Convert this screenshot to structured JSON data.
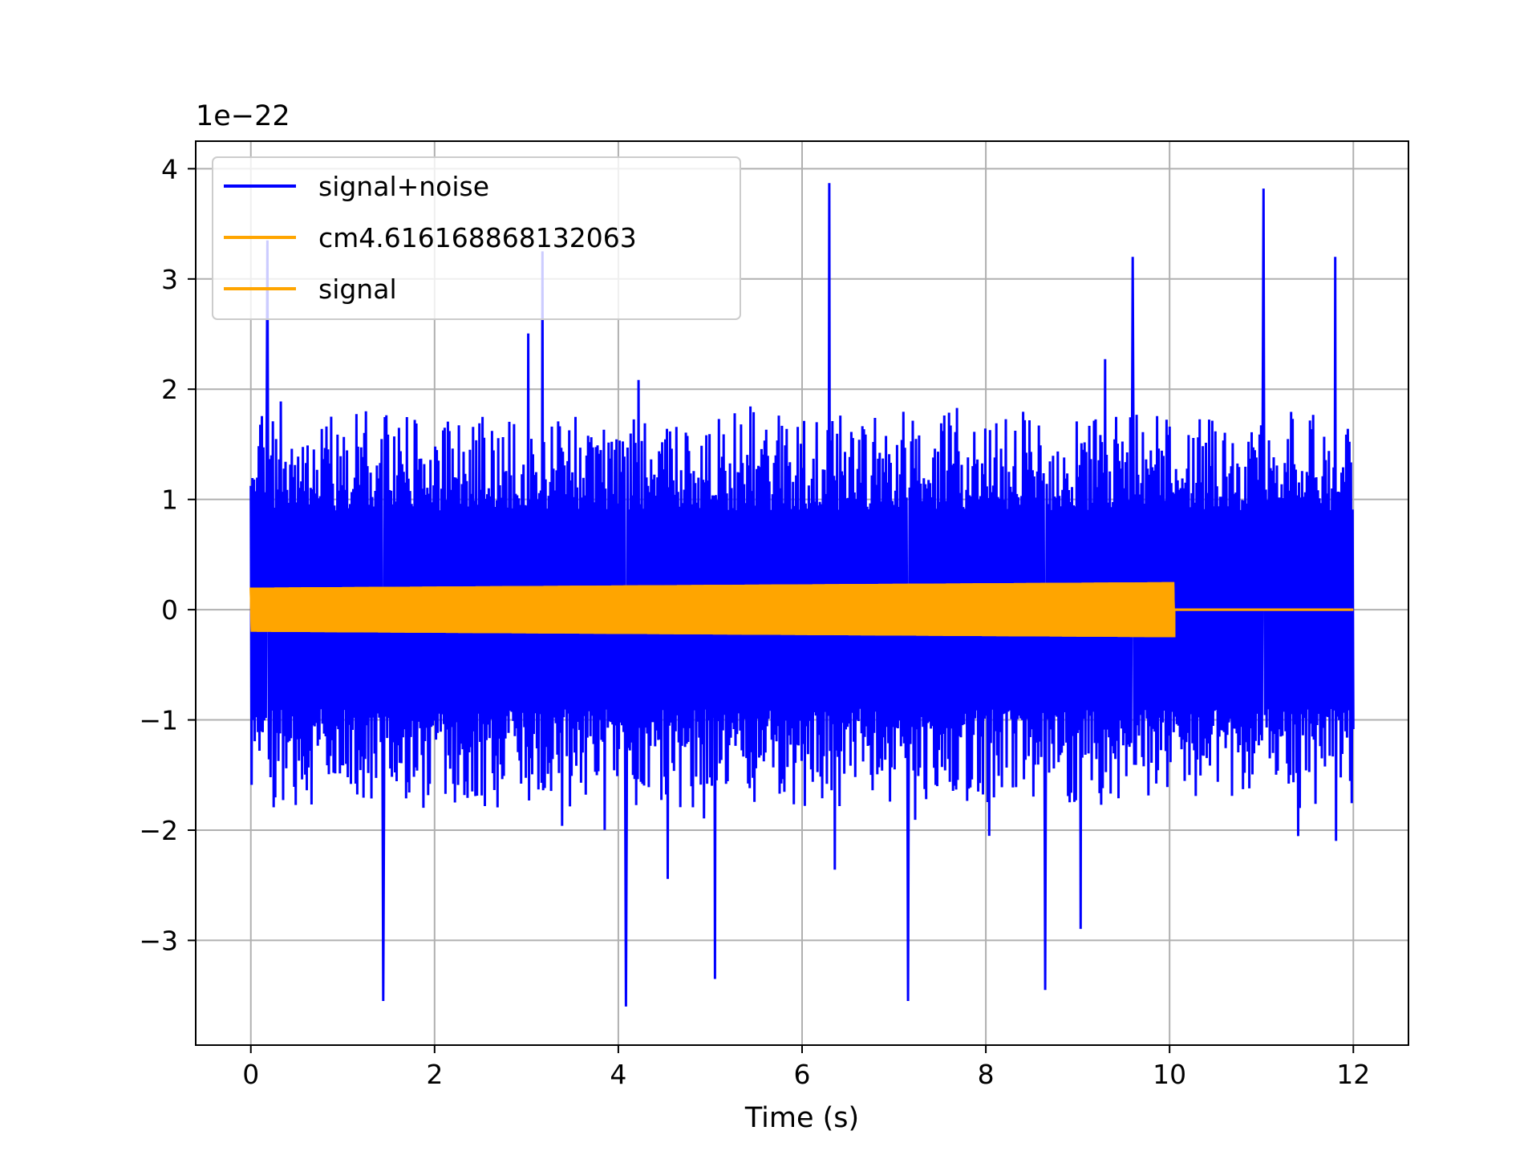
{
  "chart_data": {
    "type": "line",
    "title": "",
    "xlabel": "Time (s)",
    "ylabel": "",
    "y_offset_label": "1e−22",
    "xlim": [
      -0.6,
      12.6
    ],
    "ylim": [
      -3.95,
      4.25
    ],
    "xticks": [
      0,
      2,
      4,
      6,
      8,
      10,
      12
    ],
    "xtick_labels": [
      "0",
      "2",
      "4",
      "6",
      "8",
      "10",
      "12"
    ],
    "yticks": [
      -3,
      -2,
      -1,
      0,
      1,
      2,
      3,
      4
    ],
    "ytick_labels": [
      "−3",
      "−2",
      "−1",
      "0",
      "1",
      "2",
      "3",
      "4"
    ],
    "grid": true,
    "legend_position": "top-left",
    "series": [
      {
        "name": "signal+noise",
        "color": "#0000ff",
        "style": "dense gaussian noise (std ~0.7) over 0 to 12 s, spikes between about -3.6 and 3.9",
        "x_range": [
          0,
          12
        ],
        "peaks": [
          {
            "x": 0.18,
            "y": 3.35
          },
          {
            "x": 1.44,
            "y": -3.55
          },
          {
            "x": 3.17,
            "y": 3.25
          },
          {
            "x": 4.08,
            "y": -3.6
          },
          {
            "x": 5.05,
            "y": -3.35
          },
          {
            "x": 6.3,
            "y": 3.87
          },
          {
            "x": 7.15,
            "y": -3.55
          },
          {
            "x": 8.65,
            "y": -3.45
          },
          {
            "x": 9.6,
            "y": 3.2
          },
          {
            "x": 11.02,
            "y": 3.82
          },
          {
            "x": 11.8,
            "y": 3.2
          }
        ]
      },
      {
        "name": "cm4.616168868132063",
        "color": "#ffa500",
        "style": "oscillation with slowly growing envelope 0.2 to 0.25 from 0 to 10.05 s, then 0 to 12 s",
        "x_range": [
          0,
          12
        ],
        "envelope": [
          {
            "x": 0,
            "y": 0.2
          },
          {
            "x": 10.05,
            "y": 0.25
          }
        ],
        "end_of_oscillation": 10.05
      },
      {
        "name": "signal",
        "color": "#ffa500",
        "style": "same as cm series",
        "x_range": [
          0,
          12
        ]
      }
    ]
  }
}
